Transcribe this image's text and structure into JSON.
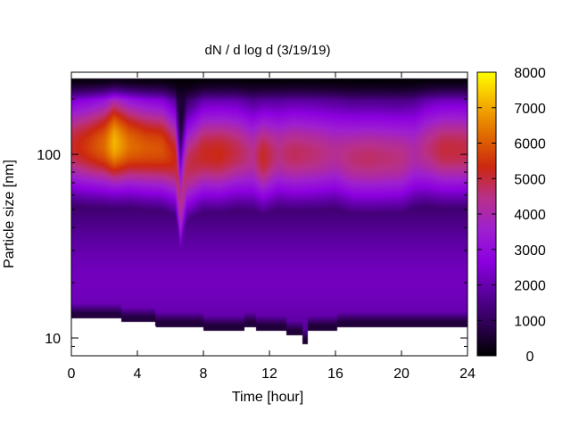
{
  "chart_data": {
    "type": "heatmap",
    "title": "dN / d log d (3/19/19)",
    "xlabel": "Time [hour]",
    "ylabel": "Particle size [nm]",
    "x_axis": {
      "scale": "linear",
      "range": [
        0,
        24
      ],
      "ticks": [
        0,
        4,
        8,
        12,
        16,
        20,
        24
      ],
      "tick_labels": [
        "0",
        "4",
        "8",
        "12",
        "16",
        "20",
        "24"
      ]
    },
    "y_axis": {
      "scale": "log",
      "range": [
        8,
        280
      ],
      "ticks": [
        10,
        100
      ],
      "tick_labels": [
        "10",
        "100"
      ],
      "data_top": 260
    },
    "colorbar": {
      "range": [
        0,
        8000
      ],
      "ticks": [
        0,
        1000,
        2000,
        3000,
        4000,
        5000,
        6000,
        7000,
        8000
      ],
      "tick_labels": [
        "0",
        "1000",
        "2000",
        "3000",
        "4000",
        "5000",
        "6000",
        "7000",
        "8000"
      ],
      "palette": [
        "#000000",
        "#2e0052",
        "#5a009e",
        "#8c00e0",
        "#9e20d0",
        "#b8308a",
        "#cc2810",
        "#e06a00",
        "#f4b000",
        "#ffff00"
      ]
    },
    "mode_peak": {
      "hours": [
        0,
        1,
        2,
        2.6,
        3.5,
        4.5,
        5.5,
        6.3,
        6.6,
        7.0,
        8,
        9,
        10,
        11,
        11.6,
        12.5,
        13.5,
        14.8,
        16,
        17,
        18,
        19,
        20,
        20.8,
        21.5,
        22.5,
        23.5,
        24
      ],
      "peak_diameter_nm": [
        110,
        110,
        112,
        115,
        112,
        108,
        106,
        95,
        50,
        85,
        100,
        100,
        102,
        98,
        96,
        100,
        100,
        100,
        100,
        95,
        95,
        95,
        95,
        100,
        105,
        105,
        105,
        105
      ],
      "peak_value": [
        5100,
        5600,
        6200,
        7200,
        6300,
        6000,
        5900,
        5300,
        4200,
        4800,
        5200,
        5300,
        4900,
        4400,
        5200,
        4500,
        4800,
        4600,
        4300,
        4600,
        4700,
        4600,
        4500,
        4100,
        4500,
        5000,
        5000,
        4900
      ]
    },
    "lower_cutoff_nm": {
      "hours": [
        0,
        3,
        3.01,
        5.1,
        5.11,
        8.0,
        8.01,
        10.5,
        10.51,
        11.2,
        11.21,
        13.0,
        13.01,
        14.0,
        14.01,
        14.3,
        14.31,
        16.1,
        16.11,
        24
      ],
      "diameter_nm": [
        12.8,
        12.8,
        12.2,
        12.2,
        11.5,
        11.5,
        11.0,
        11.0,
        11.5,
        11.5,
        11.0,
        11.0,
        10.3,
        10.3,
        9.2,
        9.2,
        11.0,
        11.0,
        11.5,
        11.5
      ]
    }
  }
}
